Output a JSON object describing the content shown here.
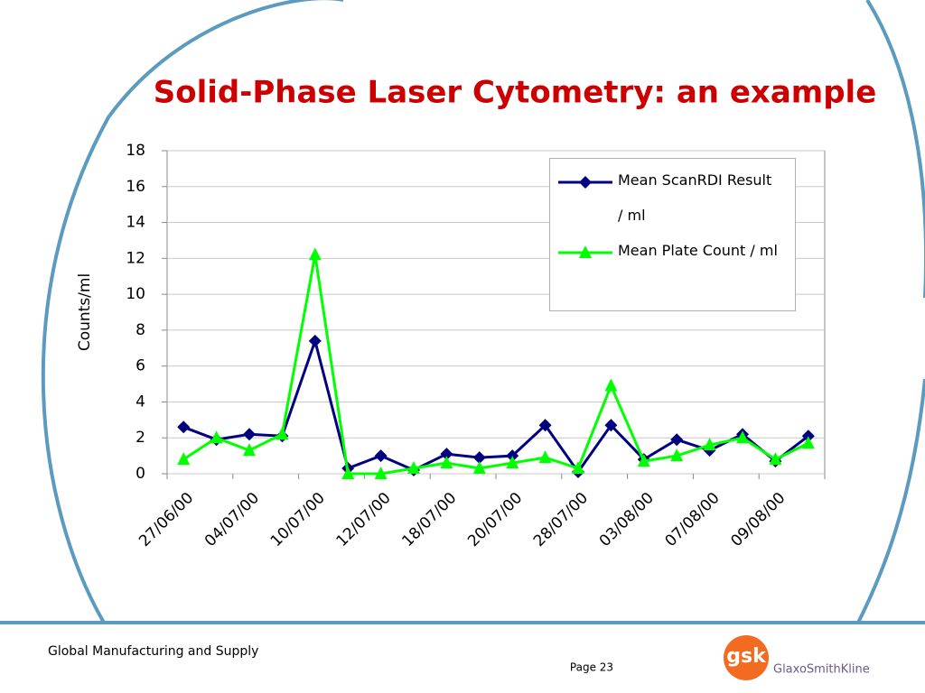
{
  "chart_data": {
    "type": "line",
    "title": "Solid-Phase Laser Cytometry: an example",
    "y_label": "Counts/ml",
    "categories": [
      "27/06/00",
      null,
      "04/07/00",
      null,
      "10/07/00",
      null,
      "12/07/00",
      null,
      "18/07/00",
      null,
      "20/07/00",
      null,
      "28/07/00",
      null,
      "03/08/00",
      null,
      "07/08/00",
      null,
      "09/08/00",
      null
    ],
    "series": [
      {
        "name": "Mean ScanRDI Result / ml",
        "color": "#000080",
        "marker": "diamond",
        "values": [
          2.6,
          1.9,
          2.2,
          2.1,
          7.4,
          0.3,
          1.0,
          0.2,
          1.1,
          0.9,
          1.0,
          2.7,
          0.1,
          2.7,
          0.8,
          1.9,
          1.3,
          2.2,
          0.7,
          2.1
        ]
      },
      {
        "name": "Mean Plate Count / ml",
        "color": "#00ff00",
        "marker": "triangle",
        "values": [
          0.8,
          2.0,
          1.3,
          2.2,
          12.2,
          0.0,
          0.0,
          0.3,
          0.6,
          0.3,
          0.6,
          0.9,
          0.3,
          4.9,
          0.7,
          1.0,
          1.6,
          2.0,
          0.8,
          1.7
        ]
      }
    ],
    "ylim": [
      0,
      18
    ],
    "yticks": [
      0,
      2,
      4,
      6,
      8,
      10,
      12,
      14,
      16,
      18
    ],
    "grid": true,
    "legend": "upper right"
  },
  "footer": {
    "left": "Global Manufacturing and Supply",
    "page": "Page 23",
    "logo": "gsk",
    "company": "GlaxoSmithKline"
  }
}
